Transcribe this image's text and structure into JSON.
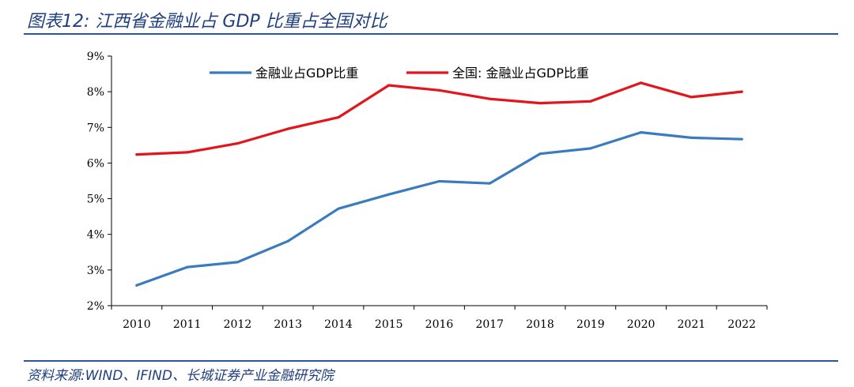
{
  "figure": {
    "title": "图表12:  江西省金融业占 GDP 比重占全国对比",
    "source": "资料来源:WIND、IFIND、长城证券产业金融研究院"
  },
  "colors": {
    "blue_series": "#3a7bbf",
    "red_series": "#e3141b",
    "axis": "#000000"
  },
  "chart_data": {
    "type": "line",
    "title": "江西省金融业占 GDP 比重占全国对比",
    "xlabel": "",
    "ylabel": "",
    "categories": [
      "2010",
      "2011",
      "2012",
      "2013",
      "2014",
      "2015",
      "2016",
      "2017",
      "2018",
      "2019",
      "2020",
      "2021",
      "2022"
    ],
    "ylim": [
      2,
      9
    ],
    "yticks": [
      2,
      3,
      4,
      5,
      6,
      7,
      8,
      9
    ],
    "ytick_labels": [
      "2%",
      "3%",
      "4%",
      "5%",
      "6%",
      "7%",
      "8%",
      "9%"
    ],
    "legend_position": "top-center",
    "grid": false,
    "series": [
      {
        "name": "金融业占GDP比重",
        "color": "#3a7bbf",
        "values": [
          2.57,
          3.08,
          3.22,
          3.81,
          4.72,
          5.12,
          5.49,
          5.43,
          6.26,
          6.41,
          6.86,
          6.71,
          6.67
        ]
      },
      {
        "name": "全国: 金融业占GDP比重",
        "color": "#e3141b",
        "values": [
          6.24,
          6.3,
          6.55,
          6.96,
          7.28,
          8.18,
          8.04,
          7.8,
          7.68,
          7.73,
          8.25,
          7.85,
          8.0
        ]
      }
    ]
  }
}
